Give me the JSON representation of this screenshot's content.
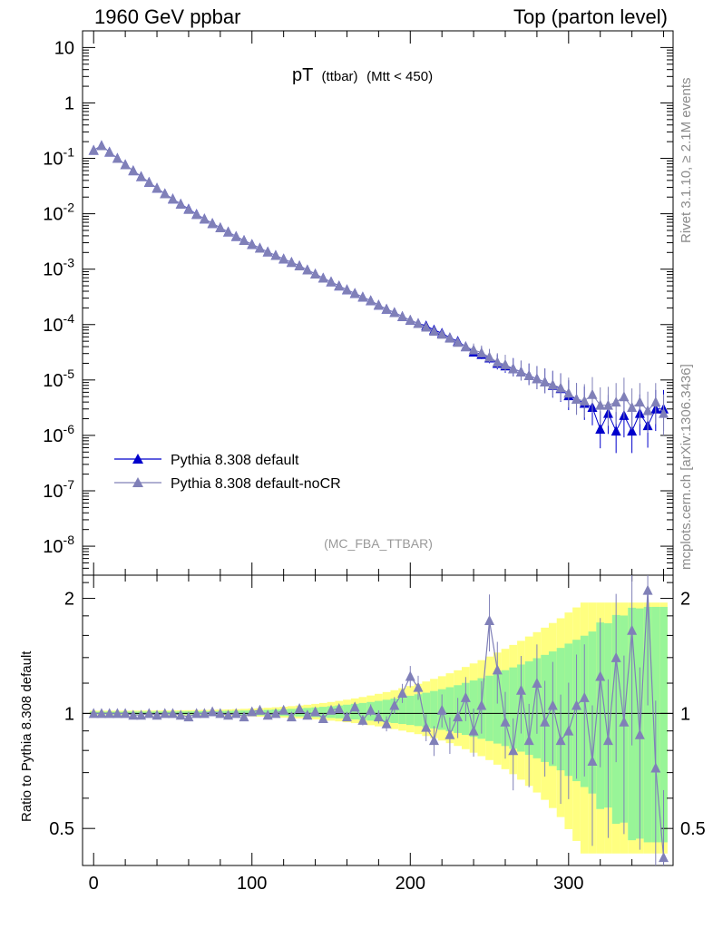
{
  "header": {
    "left": "1960 GeV ppbar",
    "right": "Top (parton level)"
  },
  "side": {
    "rivet": "Rivet 3.1.10, ≥ 2.1M events",
    "mcplots": "mcplots.cern.ch [arXiv:1306.3436]"
  },
  "chart_data": [
    {
      "type": "scatter",
      "title_main": "pT",
      "title_sub": "(ttbar)",
      "title_cut": "(Mtt < 450)",
      "analysis_label": "(MC_FBA_TTBAR)",
      "yscale": "log",
      "ylim": [
        3e-09,
        20
      ],
      "xlim": [
        -7,
        366
      ],
      "y_ticks": [
        "10",
        "1",
        "10-1",
        "10-2",
        "10-3",
        "10-4",
        "10-5",
        "10-6",
        "10-7",
        "10-8"
      ],
      "x": [
        0,
        5,
        10,
        15,
        20,
        25,
        30,
        35,
        40,
        45,
        50,
        55,
        60,
        65,
        70,
        75,
        80,
        85,
        90,
        95,
        100,
        105,
        110,
        115,
        120,
        125,
        130,
        135,
        140,
        145,
        150,
        155,
        160,
        165,
        170,
        175,
        180,
        185,
        190,
        195,
        200,
        205,
        210,
        215,
        220,
        225,
        230,
        235,
        240,
        245,
        250,
        255,
        260,
        265,
        270,
        275,
        280,
        285,
        290,
        295,
        300,
        305,
        310,
        315,
        320,
        325,
        330,
        335,
        340,
        345,
        350,
        355,
        360
      ],
      "series": [
        {
          "name": "Pythia 8.308 default",
          "color": "#0000cc",
          "values": [
            0.14,
            0.17,
            0.13,
            0.1,
            0.077,
            0.06,
            0.047,
            0.037,
            0.029,
            0.023,
            0.0185,
            0.015,
            0.0122,
            0.0098,
            0.0081,
            0.0067,
            0.0056,
            0.0047,
            0.0039,
            0.0033,
            0.0028,
            0.0024,
            0.00205,
            0.00177,
            0.00153,
            0.00133,
            0.00115,
            0.00097,
            0.00082,
            0.00069,
            0.00059,
            0.0005,
            0.000425,
            0.000365,
            0.000315,
            0.00027,
            0.000225,
            0.00019,
            0.000165,
            0.00014,
            0.00012,
            0.000105,
            9.5e-05,
            8e-05,
            7e-05,
            5.8e-05,
            5e-05,
            4e-05,
            3.2e-05,
            2.9e-05,
            2.5e-05,
            2e-05,
            1.8e-05,
            1.6e-05,
            1.4e-05,
            1.2e-05,
            1.05e-05,
            9.2e-06,
            8e-06,
            7e-06,
            5.2e-06,
            4.5e-06,
            3.8e-06,
            3.2e-06,
            1.3e-06,
            2.5e-06,
            1.2e-06,
            2.3e-06,
            1.2e-06,
            2.5e-06,
            1.5e-06,
            3e-06,
            3e-06
          ],
          "ratio": [
            1,
            1,
            1,
            1,
            1,
            1,
            1,
            1,
            1,
            1,
            1,
            1,
            1,
            1,
            1,
            1,
            1,
            1,
            1,
            1,
            1,
            1,
            1,
            1,
            1,
            1,
            1,
            1,
            1,
            1,
            1,
            1,
            1,
            1,
            1,
            1,
            1,
            1,
            1,
            1,
            1,
            1,
            1,
            1,
            1,
            1,
            1,
            1,
            1,
            1,
            1,
            1,
            1,
            1,
            1,
            1,
            1,
            1,
            1,
            1,
            1,
            1,
            1,
            1,
            1,
            1,
            1,
            1,
            1,
            1,
            1,
            1,
            1
          ]
        },
        {
          "name": "Pythia 8.308 default-noCR",
          "color": "#8080b8",
          "values": [
            0.14,
            0.17,
            0.13,
            0.1,
            0.077,
            0.06,
            0.047,
            0.037,
            0.029,
            0.023,
            0.0185,
            0.015,
            0.012,
            0.0097,
            0.0081,
            0.0067,
            0.0056,
            0.0047,
            0.0039,
            0.0033,
            0.0028,
            0.0024,
            0.00205,
            0.00177,
            0.00153,
            0.00133,
            0.00115,
            0.00097,
            0.00082,
            0.00069,
            0.00059,
            0.0005,
            0.000425,
            0.000365,
            0.000315,
            0.00027,
            0.000225,
            0.00019,
            0.000165,
            0.00014,
            0.00012,
            0.000105,
            9e-05,
            7.6e-05,
            6.7e-05,
            5.7e-05,
            4.8e-05,
            4e-05,
            3.5e-05,
            3.1e-05,
            2.6e-05,
            2.1e-05,
            1.9e-05,
            1.6e-05,
            1.4e-05,
            1.2e-05,
            1.05e-05,
            9.2e-06,
            8.2e-06,
            7.2e-06,
            5.8e-06,
            4.5e-06,
            4.2e-06,
            5.5e-06,
            3.5e-06,
            3.5e-06,
            4e-06,
            5e-06,
            3.2e-06,
            4e-06,
            2.8e-06,
            4e-06,
            2.5e-06
          ],
          "ratio": [
            1,
            1,
            1,
            1,
            1,
            0.99,
            0.99,
            1,
            0.99,
            1,
            1,
            0.99,
            0.98,
            1,
            1,
            1.01,
            1,
            0.99,
            1,
            0.98,
            1.01,
            1.02,
            0.99,
            1,
            1.02,
            0.98,
            1.03,
            0.99,
            1.01,
            0.97,
            1.02,
            1.03,
            0.98,
            1.04,
            0.96,
            1.02,
            0.98,
            0.94,
            1.05,
            1.13,
            1.25,
            1.17,
            0.92,
            0.85,
            1.02,
            0.88,
            0.98,
            1.1,
            0.9,
            1.05,
            1.75,
            1.3,
            0.95,
            0.8,
            1.15,
            0.85,
            1.2,
            0.95,
            1.05,
            0.85,
            0.9,
            1.05,
            1.1,
            0.75,
            1.25,
            0.85,
            1.4,
            0.95,
            1.65,
            0.88,
            2.1,
            0.72,
            0.42
          ]
        }
      ],
      "ratio_panel": {
        "ylabel": "Ratio to Pythia 8.308 default",
        "ylim": [
          0.4,
          2.3
        ],
        "y_ticks": [
          "2",
          "1",
          "0.5"
        ],
        "x_ticks": [
          "0",
          "100",
          "200",
          "300"
        ]
      }
    }
  ]
}
